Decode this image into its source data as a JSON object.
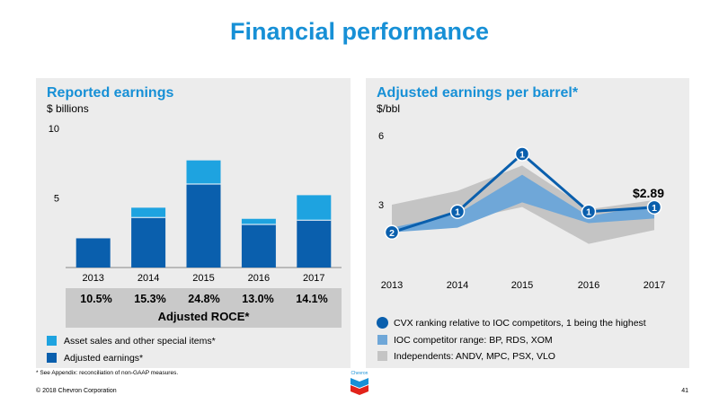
{
  "slide": {
    "title": "Financial performance",
    "footnote": "* See Appendix: reconciliation of non-GAAP measures.",
    "copyright": "© 2018 Chevron Corporation",
    "page_number": "41",
    "logo_text": "Chevron"
  },
  "left_panel": {
    "title": "Reported earnings",
    "subtitle": "$ billions",
    "roce_values": [
      "10.5%",
      "15.3%",
      "24.8%",
      "13.0%",
      "14.1%"
    ],
    "roce_caption": "Adjusted ROCE*",
    "legend": [
      {
        "label": "Asset sales and other special items*",
        "color": "#1ea3e0"
      },
      {
        "label": "Adjusted earnings*",
        "color": "#0a5fad"
      }
    ]
  },
  "right_panel": {
    "title": "Adjusted earnings per barrel*",
    "subtitle": "$/bbl",
    "callout": "$2.89",
    "legend": [
      {
        "label": "CVX ranking relative to IOC competitors, 1 being the highest",
        "color": "#0a5fad",
        "shape": "circle"
      },
      {
        "label": "IOC competitor range: BP, RDS, XOM",
        "color": "#6fa7d8",
        "shape": "square"
      },
      {
        "label": "Independents: ANDV, MPC, PSX, VLO",
        "color": "#c4c4c4",
        "shape": "square"
      }
    ]
  },
  "chart_data": [
    {
      "type": "bar",
      "stacked": true,
      "categories": [
        "2013",
        "2014",
        "2015",
        "2016",
        "2017"
      ],
      "series": [
        {
          "name": "Adjusted earnings*",
          "values": [
            2.1,
            3.6,
            6.0,
            3.1,
            3.4
          ],
          "color": "#0a5fad"
        },
        {
          "name": "Asset sales and other special items*",
          "values": [
            0,
            0.7,
            1.7,
            0.4,
            1.8
          ],
          "color": "#1ea3e0"
        }
      ],
      "yticks": [
        5,
        10
      ],
      "ylim": [
        0,
        10
      ]
    },
    {
      "type": "line",
      "x": [
        "2013",
        "2014",
        "2015",
        "2016",
        "2017"
      ],
      "series": [
        {
          "name": "Independents: ANDV, MPC, PSX, VLO",
          "kind": "band",
          "low": [
            1.9,
            2.3,
            2.9,
            1.3,
            1.9
          ],
          "high": [
            3.0,
            3.6,
            4.7,
            2.8,
            3.2
          ],
          "color": "#c4c4c4"
        },
        {
          "name": "IOC competitor range: BP, RDS, XOM",
          "kind": "band",
          "low": [
            1.8,
            2.0,
            3.1,
            2.2,
            2.4
          ],
          "high": [
            2.0,
            2.6,
            4.3,
            2.5,
            3.0
          ],
          "color": "#6fa7d8"
        },
        {
          "name": "CVX",
          "kind": "line",
          "values": [
            1.8,
            2.7,
            5.2,
            2.7,
            2.89
          ],
          "ranks": [
            "2",
            "1",
            "1",
            "1",
            "1"
          ],
          "color": "#0a5fad"
        }
      ],
      "yticks": [
        3,
        6
      ],
      "ylim": [
        0,
        6
      ]
    }
  ]
}
